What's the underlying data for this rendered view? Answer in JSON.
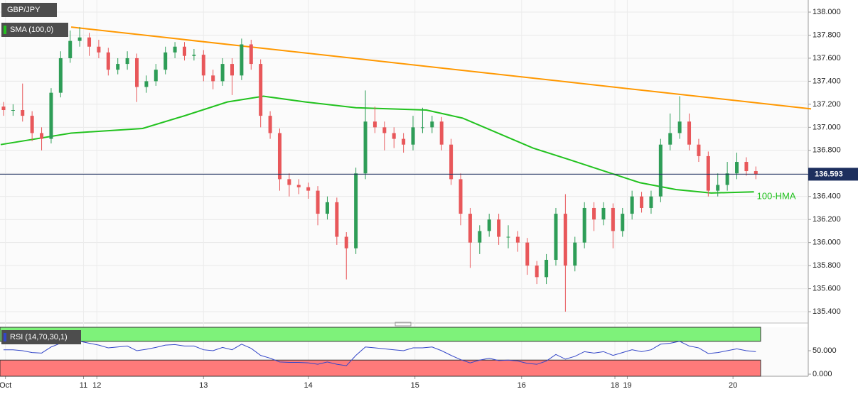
{
  "chart_data": [
    {
      "type": "candlestick",
      "title": "GBP/JPY",
      "indicator_label": "SMA (100,0)",
      "up_color": "#2e9d57",
      "down_color": "#e8575a",
      "grid": true,
      "candles": {
        "open": [
          137.18,
          137.15,
          137.15,
          137.1,
          136.95,
          136.9,
          137.3,
          137.6,
          137.75,
          137.78,
          137.7,
          137.65,
          137.5,
          137.55,
          137.6,
          137.35,
          137.4,
          137.5,
          137.65,
          137.7,
          137.62,
          137.63,
          137.45,
          137.4,
          137.55,
          137.45,
          137.72,
          137.55,
          137.1,
          136.95,
          136.55,
          136.5,
          136.48,
          136.45,
          136.25,
          136.35,
          136.05,
          135.95,
          136.6,
          137.05,
          137.0,
          136.95,
          136.9,
          136.85,
          137.0,
          137.0,
          137.05,
          136.85,
          136.55,
          136.25,
          136.0,
          136.1,
          136.2,
          136.05,
          136.05,
          136.0,
          135.8,
          135.7,
          135.85,
          136.25,
          135.8,
          136.0,
          136.3,
          136.2,
          136.3,
          136.1,
          136.25,
          136.4,
          136.3,
          136.4,
          136.85,
          136.95,
          137.05,
          136.85,
          136.75,
          136.45,
          136.5,
          136.6,
          136.7,
          136.62
        ],
        "high": [
          137.22,
          137.2,
          137.38,
          137.14,
          137.0,
          137.34,
          137.66,
          137.84,
          137.87,
          137.82,
          137.76,
          137.69,
          137.6,
          137.66,
          137.64,
          137.45,
          137.55,
          137.7,
          137.74,
          137.74,
          137.68,
          137.67,
          137.5,
          137.6,
          137.6,
          137.77,
          137.76,
          137.59,
          137.14,
          136.99,
          136.6,
          136.55,
          136.52,
          136.49,
          136.4,
          136.39,
          136.09,
          136.65,
          137.32,
          137.18,
          137.05,
          137.0,
          136.95,
          137.1,
          137.17,
          137.1,
          137.09,
          136.9,
          136.6,
          136.3,
          136.15,
          136.25,
          136.25,
          136.15,
          136.1,
          136.04,
          135.84,
          135.9,
          136.3,
          136.42,
          136.05,
          136.35,
          136.35,
          136.35,
          136.34,
          136.3,
          136.45,
          136.44,
          136.45,
          136.9,
          137.12,
          137.27,
          137.12,
          136.9,
          136.79,
          136.6,
          136.7,
          136.78,
          136.74,
          136.66
        ],
        "low": [
          137.1,
          137.1,
          137.05,
          136.88,
          136.8,
          136.86,
          137.26,
          137.56,
          137.7,
          137.62,
          137.6,
          137.45,
          137.46,
          137.5,
          137.22,
          137.3,
          137.36,
          137.46,
          137.6,
          137.58,
          137.58,
          137.4,
          137.33,
          137.36,
          137.28,
          137.41,
          137.5,
          137.0,
          136.9,
          136.45,
          136.4,
          136.42,
          136.38,
          136.15,
          136.2,
          135.98,
          135.68,
          135.9,
          136.55,
          136.95,
          136.8,
          136.82,
          136.78,
          136.8,
          136.95,
          136.95,
          136.8,
          136.5,
          136.15,
          135.78,
          135.9,
          136.05,
          135.98,
          135.95,
          135.92,
          135.72,
          135.64,
          135.64,
          135.8,
          135.4,
          135.75,
          135.95,
          136.1,
          136.15,
          135.95,
          136.05,
          136.2,
          136.26,
          136.25,
          136.35,
          136.8,
          136.9,
          136.8,
          136.7,
          136.4,
          136.4,
          136.45,
          136.55,
          136.58,
          136.55
        ],
        "close": [
          137.15,
          137.15,
          137.1,
          136.95,
          136.9,
          137.3,
          137.6,
          137.75,
          137.78,
          137.7,
          137.65,
          137.5,
          137.55,
          137.6,
          137.35,
          137.4,
          137.5,
          137.65,
          137.7,
          137.62,
          137.63,
          137.45,
          137.4,
          137.55,
          137.45,
          137.72,
          137.55,
          137.1,
          136.95,
          136.55,
          136.5,
          136.48,
          136.45,
          136.25,
          136.35,
          136.05,
          135.95,
          136.6,
          137.05,
          137.0,
          136.95,
          136.9,
          136.85,
          137.0,
          137.0,
          137.05,
          136.85,
          136.55,
          136.25,
          136.0,
          136.1,
          136.2,
          136.05,
          136.05,
          136.0,
          135.8,
          135.7,
          135.85,
          136.25,
          135.8,
          136.0,
          136.3,
          136.2,
          136.3,
          136.1,
          136.25,
          136.4,
          136.3,
          136.4,
          136.85,
          136.95,
          137.05,
          136.85,
          136.75,
          136.45,
          136.5,
          136.6,
          136.7,
          136.62,
          136.593
        ]
      },
      "lines": [
        {
          "name": "100-HMA",
          "color": "#22c21f",
          "x": [
            -0.3,
            7.1,
            14.6,
            19,
            23.5,
            27.3,
            31.7,
            37,
            44.4,
            48.2,
            51.9,
            55.6,
            59.4,
            63.1,
            66.8,
            70.6,
            74.3,
            78.8
          ],
          "values": [
            136.85,
            136.95,
            136.99,
            137.1,
            137.22,
            137.27,
            137.22,
            137.17,
            137.15,
            137.08,
            136.95,
            136.82,
            136.72,
            136.62,
            136.52,
            136.46,
            136.43,
            136.44
          ]
        },
        {
          "color": "#ff9800",
          "x": [
            7.1,
            84.8
          ],
          "values": [
            137.87,
            137.16
          ]
        }
      ],
      "last_price": 136.593,
      "last_price_label": "136.593",
      "xlim": [
        -0.37,
        84.5
      ],
      "ylim": [
        135.314,
        138.105
      ],
      "yticks": [
        {
          "value": 135.4,
          "label": "135.400"
        },
        {
          "value": 135.6,
          "label": "135.600"
        },
        {
          "value": 135.8,
          "label": "135.800"
        },
        {
          "value": 136.0,
          "label": "136.000"
        },
        {
          "value": 136.2,
          "label": "136.200"
        },
        {
          "value": 136.4,
          "label": "136.400"
        },
        {
          "value": 136.6,
          "label": "136.600"
        },
        {
          "value": 136.8,
          "label": "136.800"
        },
        {
          "value": 137.0,
          "label": "137.000"
        },
        {
          "value": 137.2,
          "label": "137.200"
        },
        {
          "value": 137.4,
          "label": "137.400"
        },
        {
          "value": 137.6,
          "label": "137.600"
        },
        {
          "value": 137.8,
          "label": "137.800"
        },
        {
          "value": 138.0,
          "label": "138.000"
        }
      ],
      "xticks": [
        {
          "value": 0.2,
          "label": "Oct"
        },
        {
          "value": 8.4,
          "label": "11"
        },
        {
          "value": 9.8,
          "label": "12"
        },
        {
          "value": 21,
          "label": "13"
        },
        {
          "value": 32,
          "label": "14"
        },
        {
          "value": 43.2,
          "label": "15"
        },
        {
          "value": 54.4,
          "label": "16"
        },
        {
          "value": 64.2,
          "label": "18"
        },
        {
          "value": 65.5,
          "label": "19"
        },
        {
          "value": 76.6,
          "label": "20"
        }
      ]
    },
    {
      "type": "line",
      "title": "RSI (14,70,30,1)",
      "color": "#3346c8",
      "values": [
        52,
        52,
        50,
        46,
        45,
        58,
        66,
        70,
        70,
        66,
        62,
        56,
        58,
        60,
        50,
        53,
        57,
        62,
        63,
        60,
        60,
        52,
        50,
        57,
        52,
        64,
        55,
        40,
        34,
        26,
        25,
        25,
        24,
        21,
        26,
        21,
        18,
        40,
        58,
        56,
        54,
        52,
        50,
        56,
        56,
        58,
        50,
        40,
        31,
        24,
        30,
        34,
        29,
        30,
        28,
        23,
        21,
        28,
        42,
        32,
        38,
        48,
        45,
        48,
        40,
        46,
        52,
        48,
        52,
        64,
        66,
        70,
        60,
        56,
        44,
        46,
        50,
        54,
        50,
        48
      ],
      "overbought": 70,
      "oversold": 30,
      "xlim": [
        -0.37,
        84.5
      ],
      "ylim": [
        -4.5,
        100
      ],
      "yticks": [
        {
          "value": 50,
          "label": "50.000"
        },
        {
          "value": 0,
          "label": "0.000"
        }
      ]
    }
  ]
}
